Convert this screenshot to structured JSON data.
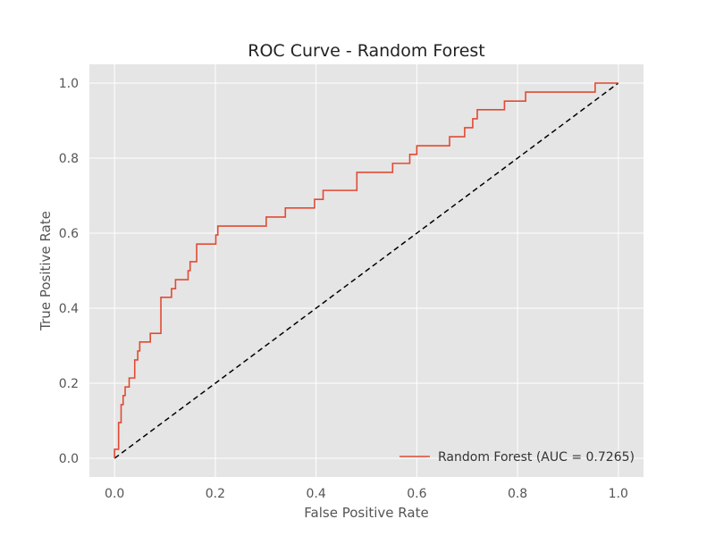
{
  "chart_data": {
    "type": "line",
    "title": "ROC Curve - Random Forest",
    "xlabel": "False Positive Rate",
    "ylabel": "True Positive Rate",
    "xlim": [
      -0.05,
      1.05
    ],
    "ylim": [
      -0.05,
      1.05
    ],
    "xticks": [
      0.0,
      0.2,
      0.4,
      0.6,
      0.8,
      1.0
    ],
    "yticks": [
      0.0,
      0.2,
      0.4,
      0.6,
      0.8,
      1.0
    ],
    "xtick_labels": [
      "0.0",
      "0.2",
      "0.4",
      "0.6",
      "0.8",
      "1.0"
    ],
    "ytick_labels": [
      "0.0",
      "0.2",
      "0.4",
      "0.6",
      "0.8",
      "1.0"
    ],
    "grid": true,
    "legend_position": "lower-right",
    "colors": {
      "background": "#e5e5e5",
      "grid": "#ffffff",
      "roc": "#e24a33",
      "diagonal": "#000000"
    },
    "series": [
      {
        "name": "Random Forest (AUC = 0.7265)",
        "style": "solid",
        "x": [
          0.0,
          0.0,
          0.008,
          0.008,
          0.013,
          0.013,
          0.017,
          0.017,
          0.021,
          0.021,
          0.029,
          0.029,
          0.04,
          0.04,
          0.046,
          0.046,
          0.05,
          0.05,
          0.071,
          0.071,
          0.092,
          0.092,
          0.113,
          0.113,
          0.121,
          0.121,
          0.146,
          0.146,
          0.15,
          0.15,
          0.163,
          0.163,
          0.201,
          0.201,
          0.205,
          0.205,
          0.301,
          0.301,
          0.339,
          0.339,
          0.397,
          0.397,
          0.414,
          0.414,
          0.481,
          0.481,
          0.552,
          0.552,
          0.586,
          0.586,
          0.6,
          0.6,
          0.665,
          0.665,
          0.695,
          0.695,
          0.711,
          0.711,
          0.72,
          0.72,
          0.774,
          0.774,
          0.816,
          0.816,
          0.954,
          0.954,
          1.0
        ],
        "y": [
          0.0,
          0.024,
          0.024,
          0.095,
          0.095,
          0.143,
          0.143,
          0.167,
          0.167,
          0.19,
          0.19,
          0.214,
          0.214,
          0.262,
          0.262,
          0.286,
          0.286,
          0.31,
          0.31,
          0.333,
          0.333,
          0.429,
          0.429,
          0.452,
          0.452,
          0.476,
          0.476,
          0.5,
          0.5,
          0.524,
          0.524,
          0.571,
          0.571,
          0.595,
          0.595,
          0.619,
          0.619,
          0.643,
          0.643,
          0.667,
          0.667,
          0.69,
          0.69,
          0.714,
          0.714,
          0.762,
          0.762,
          0.786,
          0.786,
          0.81,
          0.81,
          0.833,
          0.833,
          0.857,
          0.857,
          0.881,
          0.881,
          0.905,
          0.905,
          0.929,
          0.929,
          0.952,
          0.952,
          0.976,
          0.976,
          1.0,
          1.0
        ]
      },
      {
        "name": "",
        "style": "dashed",
        "x": [
          0.0,
          1.0
        ],
        "y": [
          0.0,
          1.0
        ]
      }
    ]
  }
}
